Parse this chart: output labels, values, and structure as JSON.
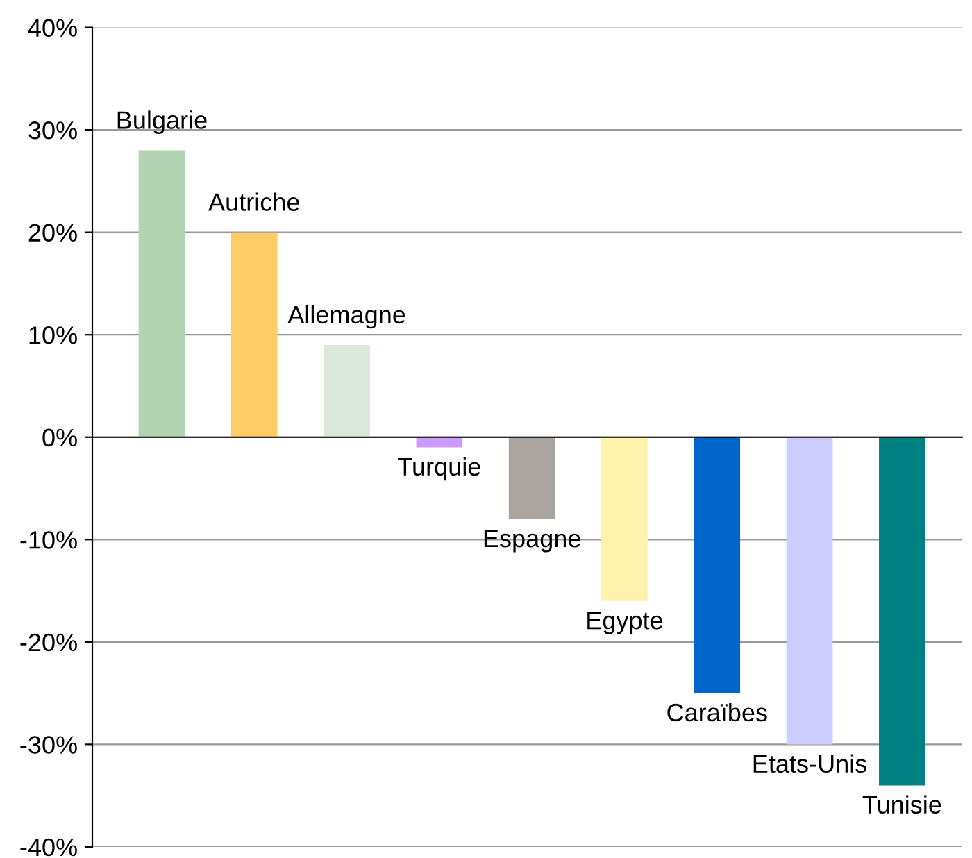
{
  "chart_data": {
    "type": "bar",
    "categories": [
      "Bulgarie",
      "Autriche",
      "Allemagne",
      "Turquie",
      "Espagne",
      "Egypte",
      "Caraïbes",
      "Etats-Unis",
      "Tunisie"
    ],
    "values": [
      28,
      20,
      9,
      -1,
      -8,
      -16,
      -25,
      -30,
      -34
    ],
    "colors": [
      "#b3d4b3",
      "#ffcc66",
      "#dce8dc",
      "#cc99ff",
      "#aaa5a0",
      "#fff2aa",
      "#0066cc",
      "#ccccff",
      "#008080"
    ],
    "ylim": [
      -40,
      40
    ],
    "yticks": [
      {
        "value": -40,
        "label": "-40%"
      },
      {
        "value": -30,
        "label": "-30%"
      },
      {
        "value": -20,
        "label": "-20%"
      },
      {
        "value": -10,
        "label": "-10%"
      },
      {
        "value": 0,
        "label": "0%"
      },
      {
        "value": 10,
        "label": "10%"
      },
      {
        "value": 20,
        "label": "20%"
      },
      {
        "value": 30,
        "label": "30%"
      },
      {
        "value": 40,
        "label": "40%"
      }
    ],
    "grid": "y",
    "legend": false
  }
}
